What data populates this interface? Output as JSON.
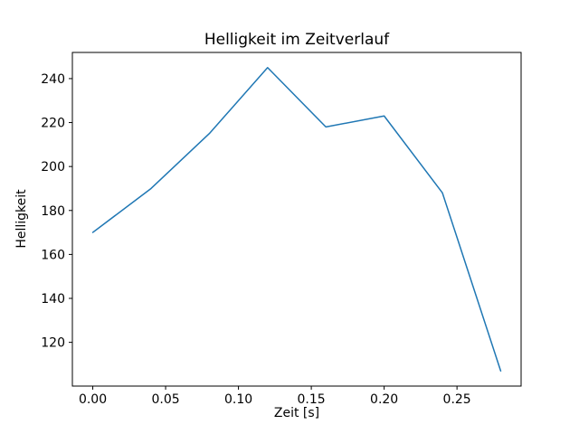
{
  "figure": {
    "background": "#ffffff",
    "text_color": "#000000",
    "spine_color": "#000000"
  },
  "chart_data": {
    "type": "line",
    "title": "Helligkeit im Zeitverlauf",
    "xlabel": "Zeit [s]",
    "ylabel": "Helligkeit",
    "x": [
      0.0,
      0.04,
      0.08,
      0.12,
      0.16,
      0.2,
      0.24,
      0.28
    ],
    "y": [
      170,
      190,
      215,
      245,
      218,
      223,
      188,
      107
    ],
    "xticks": [
      0.0,
      0.05,
      0.1,
      0.15,
      0.2,
      0.25
    ],
    "xtick_labels": [
      "0.00",
      "0.05",
      "0.10",
      "0.15",
      "0.20",
      "0.25"
    ],
    "yticks": [
      120,
      140,
      160,
      180,
      200,
      220,
      240
    ],
    "xlim": [
      -0.014,
      0.294
    ],
    "ylim": [
      100.1,
      251.9
    ],
    "line_color": "#1f77b4",
    "line_width": 1.5,
    "grid": false,
    "legend": null
  }
}
